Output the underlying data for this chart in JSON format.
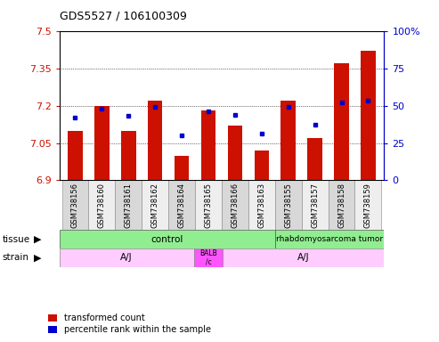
{
  "title": "GDS5527 / 106100309",
  "samples": [
    "GSM738156",
    "GSM738160",
    "GSM738161",
    "GSM738162",
    "GSM738164",
    "GSM738165",
    "GSM738166",
    "GSM738163",
    "GSM738155",
    "GSM738157",
    "GSM738158",
    "GSM738159"
  ],
  "transformed_counts": [
    7.1,
    7.2,
    7.1,
    7.22,
    7.0,
    7.18,
    7.12,
    7.02,
    7.22,
    7.07,
    7.37,
    7.42
  ],
  "percentile_ranks": [
    42,
    48,
    43,
    49,
    30,
    46,
    44,
    31,
    49,
    37,
    52,
    53
  ],
  "y_min": 6.9,
  "y_max": 7.5,
  "y_ticks": [
    6.9,
    7.05,
    7.2,
    7.35,
    7.5
  ],
  "y_right_ticks": [
    0,
    25,
    50,
    75,
    100
  ],
  "bar_color": "#cc1100",
  "dot_color": "#0000cc",
  "background_color": "#ffffff",
  "left_label_color": "#cc1100",
  "right_label_color": "#0000cc",
  "tissue_ctrl_color": "#90ee90",
  "tissue_rhab_color": "#90ee90",
  "strain_aj_color": "#ffccff",
  "strain_balb_color": "#ff55ff",
  "xtick_odd_color": "#d8d8d8",
  "xtick_even_color": "#eeeeee"
}
